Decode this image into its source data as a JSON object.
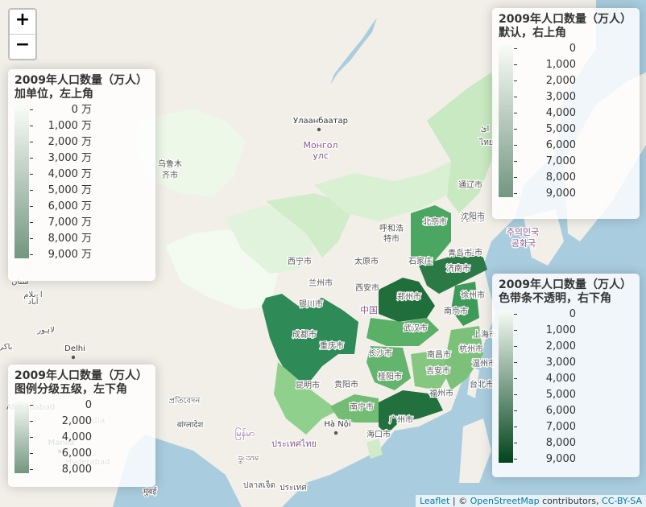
{
  "map": {
    "place_labels": [
      {
        "text": "Улаанбаатар",
        "cls": "cap"
      },
      {
        "text": "Монгол",
        "cls": "country"
      },
      {
        "text": "улс",
        "cls": "country"
      },
      {
        "text": "乌鲁木",
        "cls": "city"
      },
      {
        "text": "齐市",
        "cls": "city"
      },
      {
        "text": "西宁市",
        "cls": "city"
      },
      {
        "text": "兰州市",
        "cls": "city"
      },
      {
        "text": "呼和浩",
        "cls": "city"
      },
      {
        "text": "特市",
        "cls": "city"
      },
      {
        "text": "北京市",
        "cls": "city"
      },
      {
        "text": "天津市",
        "cls": "city"
      },
      {
        "text": "石家庄",
        "cls": "city"
      },
      {
        "text": "太原市",
        "cls": "city"
      },
      {
        "text": "银川市",
        "cls": "city"
      },
      {
        "text": "西安市",
        "cls": "city"
      },
      {
        "text": "郑州市",
        "cls": "city"
      },
      {
        "text": "济南市",
        "cls": "city"
      },
      {
        "text": "沈阳市",
        "cls": "city"
      },
      {
        "text": "大连市",
        "cls": "city"
      },
      {
        "text": "青岛市",
        "cls": "city"
      },
      {
        "text": "徐州市",
        "cls": "city"
      },
      {
        "text": "南京市",
        "cls": "city"
      },
      {
        "text": "上海市",
        "cls": "city"
      },
      {
        "text": "武汉市",
        "cls": "city"
      },
      {
        "text": "成都市",
        "cls": "city"
      },
      {
        "text": "重庆市",
        "cls": "city"
      },
      {
        "text": "长沙市",
        "cls": "city"
      },
      {
        "text": "南昌市",
        "cls": "city"
      },
      {
        "text": "杭州市",
        "cls": "city"
      },
      {
        "text": "温州市",
        "cls": "city"
      },
      {
        "text": "贵阳市",
        "cls": "city"
      },
      {
        "text": "昆明市",
        "cls": "city"
      },
      {
        "text": "南宁市",
        "cls": "city"
      },
      {
        "text": "广州市",
        "cls": "city"
      },
      {
        "text": "福州市",
        "cls": "city"
      },
      {
        "text": "台北市",
        "cls": "city"
      },
      {
        "text": "吉安市",
        "cls": "city"
      },
      {
        "text": "桂阳市",
        "cls": "city"
      },
      {
        "text": "海口市",
        "cls": "city"
      },
      {
        "text": "通辽市",
        "cls": "city"
      },
      {
        "text": "中国",
        "cls": "country"
      },
      {
        "text": "Hà Nội",
        "cls": "cap"
      },
      {
        "text": "Delhi",
        "cls": "cap"
      },
      {
        "text": "India",
        "cls": "country"
      },
      {
        "text": "Hyderabad",
        "cls": "city"
      },
      {
        "text": "Ahmedabad",
        "cls": "city"
      },
      {
        "text": "Manila",
        "cls": "cap"
      },
      {
        "text": "প্রতিবেদন",
        "cls": "city"
      },
      {
        "text": "बांग्लादेश",
        "cls": "city"
      },
      {
        "text": "मुंबई",
        "cls": "city"
      },
      {
        "text": "ประเทศไทย",
        "cls": "country"
      },
      {
        "text": "ปลาสเจ็ด",
        "cls": "city"
      },
      {
        "text": "မြန်မာ",
        "cls": "country"
      },
      {
        "text": "ಸ್ಥಾನಗಳ",
        "cls": "city"
      },
      {
        "text": "주의민국",
        "cls": "country"
      },
      {
        "text": "공화국",
        "cls": "country"
      },
      {
        "text": "ประเทศ",
        "cls": "city"
      },
      {
        "text": "ائ",
        "cls": "city"
      },
      {
        "text": "لاہور",
        "cls": "city"
      },
      {
        "text": "اسلام",
        "cls": "city"
      },
      {
        "text": "آباد",
        "cls": "city"
      },
      {
        "text": "ستان",
        "cls": "city"
      },
      {
        "text": "باکی",
        "cls": "city"
      },
      {
        "text": "ไทย",
        "cls": "city"
      }
    ]
  },
  "zoom": {
    "in": "+",
    "out": "−"
  },
  "legends": [
    {
      "id": "topleft",
      "title": "2009年人口数量（万人）\n加单位，左上角",
      "labels": [
        "0 万",
        "1,000 万",
        "2,000 万",
        "3,000 万",
        "4,000 万",
        "5,000 万",
        "6,000 万",
        "7,000 万",
        "8,000 万",
        "9,000 万"
      ],
      "opaque": false,
      "align": "right"
    },
    {
      "id": "topright",
      "title": "2009年人口数量（万人）\n默认，右上角",
      "labels": [
        "0",
        "1,000",
        "2,000",
        "3,000",
        "4,000",
        "5,000",
        "6,000",
        "7,000",
        "8,000",
        "9,000"
      ],
      "opaque": false,
      "align": "right"
    },
    {
      "id": "bottomright",
      "title": "2009年人口数量（万人）\n色带条不透明，右下角",
      "labels": [
        "0",
        "1,000",
        "2,000",
        "3,000",
        "4,000",
        "5,000",
        "6,000",
        "7,000",
        "8,000",
        "9,000"
      ],
      "opaque": true,
      "align": "right"
    },
    {
      "id": "bottomleft",
      "title": "2009年人口数量（万人）\n图例分级五级，左下角",
      "labels": [
        "0",
        "2,000",
        "4,000",
        "6,000",
        "8,000"
      ],
      "opaque": false,
      "align": "right"
    }
  ],
  "colors": {
    "low": "#f7fcf5",
    "high": "#00441b",
    "sea": "#a9cdde",
    "land": "#f2efe9"
  },
  "attribution": {
    "leaflet": "Leaflet",
    "sep": " | © ",
    "osm": "OpenStreetMap",
    "contrib": " contributors, ",
    "license": "CC-BY-SA"
  }
}
